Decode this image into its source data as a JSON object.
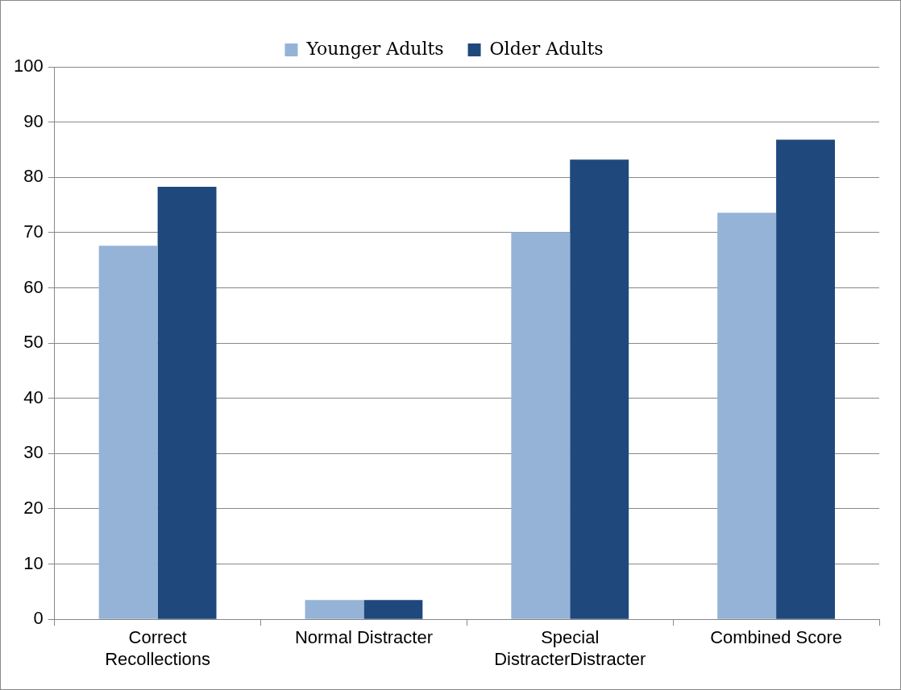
{
  "chart_data": {
    "type": "bar",
    "categories": [
      "Correct\nRecollections",
      "Normal Distracter",
      "Special\nDistracterDistracter",
      "Combined Score"
    ],
    "series": [
      {
        "name": "Younger Adults",
        "color": "#95b3d7",
        "values": [
          67.6,
          3.5,
          70.1,
          73.6
        ]
      },
      {
        "name": "Older Adults",
        "color": "#1f497d",
        "values": [
          78.3,
          3.5,
          83.2,
          86.8
        ]
      }
    ],
    "ylim": [
      0,
      100
    ],
    "yticks": [
      0,
      10,
      20,
      30,
      40,
      50,
      60,
      70,
      80,
      90,
      100
    ],
    "grid": "y",
    "legend": "top"
  }
}
